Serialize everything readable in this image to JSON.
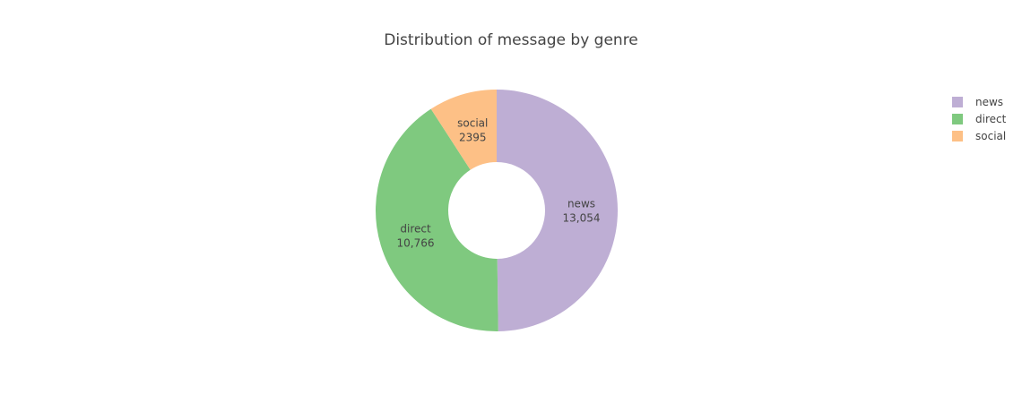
{
  "chart_data": {
    "type": "pie",
    "hole": 0.4,
    "title": "Distribution of message by genre",
    "labels": [
      "news",
      "direct",
      "social"
    ],
    "values": [
      13054,
      10766,
      2395
    ],
    "value_labels": [
      "13,054",
      "10,766",
      "2395"
    ],
    "colors": [
      "#beaed4",
      "#7fc97f",
      "#fdc086"
    ],
    "legend": {
      "position": "top-right",
      "entries": [
        "news",
        "direct",
        "social"
      ]
    }
  }
}
